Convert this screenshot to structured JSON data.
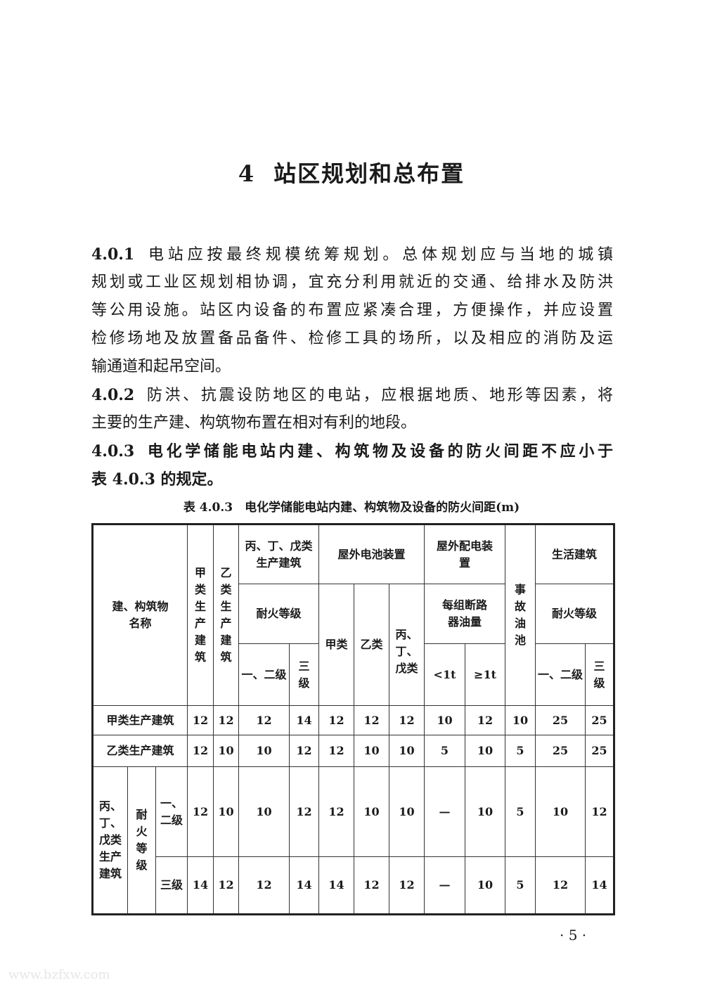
{
  "chapter": {
    "number": "4",
    "title": "站区规划和总布置"
  },
  "paragraphs": [
    {
      "clause": "4.0.1",
      "lines": [
        "电站应按最终规模统筹规划。总体规划应与当地的城镇",
        "规划或工业区规划相协调，宜充分利用就近的交通、给排水及防洪",
        "等公用设施。站区内设备的布置应紧凑合理，方便操作，并应设置",
        "检修场地及放置备品备件、检修工具的场所，以及相应的消防及运",
        "输通道和起吊空间。"
      ]
    },
    {
      "clause": "4.0.2",
      "lines": [
        "防洪、抗震设防地区的电站，应根据地质、地形等因素，将",
        "主要的生产建、构筑物布置在相对有利的地段。"
      ]
    },
    {
      "clause": "4.0.3",
      "lines": [
        "电化学储能电站内建、构筑物及设备的防火间距不应小于",
        "表 4.0.3 的规定。"
      ]
    }
  ],
  "table": {
    "caption": "表 4.0.3　电化学储能电站内建、构筑物及设备的防火间距(m)",
    "header": {
      "name": "建、构筑物名称",
      "jia": "甲类生产建筑",
      "yi": "乙类生产建筑",
      "bdw": "丙、丁、戊类生产建筑",
      "battery": "屋外电池装置",
      "switchgear": "屋外配电装置",
      "oil_pit": "事故油池",
      "living": "生活建筑",
      "fire_rating": "耐火等级",
      "bat_jia": "甲类",
      "bat_yi": "乙类",
      "bat_bdw": "丙、丁、戊类",
      "oil_qty": "每组断路器油量",
      "grade12": "一、二级",
      "grade3": "三级",
      "lt1": "<1t",
      "ge1": "≥1t"
    },
    "rows": [
      {
        "label": "甲类生产建筑",
        "values": [
          "12",
          "12",
          "12",
          "14",
          "12",
          "12",
          "12",
          "10",
          "12",
          "10",
          "25",
          "25"
        ]
      },
      {
        "label": "乙类生产建筑",
        "values": [
          "12",
          "10",
          "10",
          "12",
          "12",
          "10",
          "10",
          "5",
          "10",
          "5",
          "25",
          "25"
        ]
      },
      {
        "group": "丙、丁、戊类生产建筑",
        "subgroup": "耐火等级",
        "label": "一、二级",
        "values": [
          "12",
          "10",
          "10",
          "12",
          "12",
          "10",
          "10",
          "—",
          "10",
          "5",
          "10",
          "12"
        ]
      },
      {
        "label": "三级",
        "values": [
          "14",
          "12",
          "12",
          "14",
          "14",
          "12",
          "12",
          "—",
          "10",
          "5",
          "12",
          "14"
        ]
      }
    ]
  },
  "page_number": "· 5 ·",
  "watermark": "www.bzfxw.com"
}
